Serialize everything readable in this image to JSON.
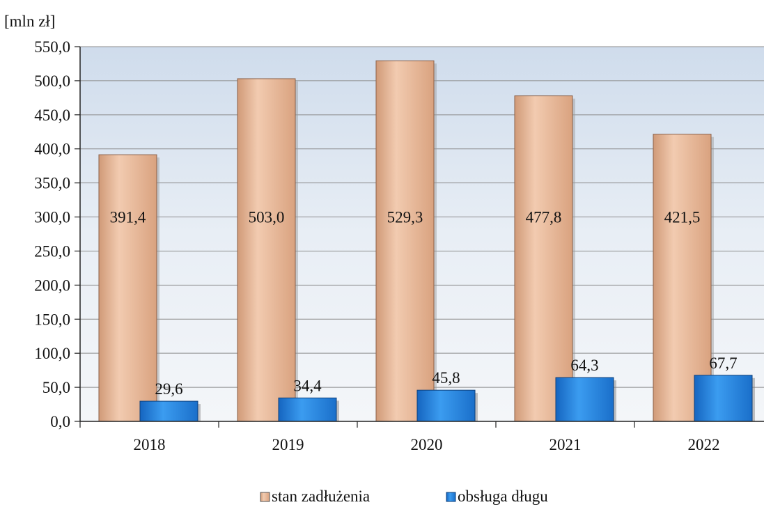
{
  "chart_data": {
    "type": "bar",
    "unit_label": "[mln zł]",
    "categories": [
      "2018",
      "2019",
      "2020",
      "2021",
      "2022"
    ],
    "series": [
      {
        "name": "stan zadłużenia",
        "values": [
          391.4,
          503.0,
          529.3,
          477.8,
          421.5
        ],
        "labels": [
          "391,4",
          "503,0",
          "529,3",
          "477,8",
          "421,5"
        ],
        "color": "#e6b697"
      },
      {
        "name": "obsługa długu",
        "values": [
          29.6,
          34.4,
          45.8,
          64.3,
          67.7
        ],
        "labels": [
          "29,6",
          "34,4",
          "45,8",
          "64,3",
          "67,7"
        ],
        "color": "#1f7fd6"
      }
    ],
    "ylim": [
      0,
      550
    ],
    "yticks": [
      "0,0",
      "50,0",
      "100,0",
      "150,0",
      "200,0",
      "250,0",
      "300,0",
      "350,0",
      "400,0",
      "450,0",
      "500,0",
      "550,0"
    ],
    "grid": true,
    "legend_position": "bottom-center"
  }
}
